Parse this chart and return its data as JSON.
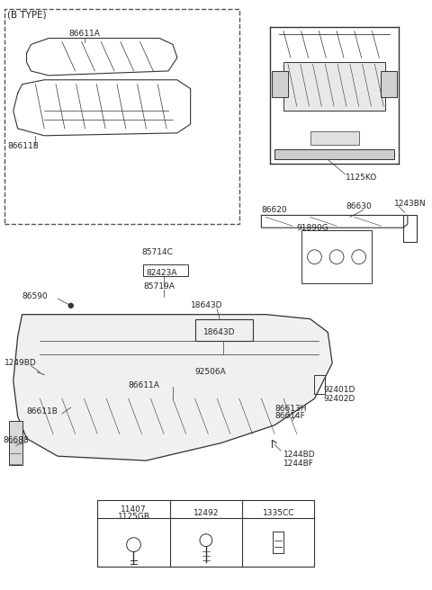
{
  "title": "",
  "bg_color": "#ffffff",
  "line_color": "#333333",
  "text_color": "#222222",
  "fig_width": 4.8,
  "fig_height": 6.56,
  "dpi": 100,
  "labels": {
    "b_type": "(B TYPE)",
    "86611A_top": "86611A",
    "86611B_top": "86611B",
    "1125KO": "1125KO",
    "86620": "86620",
    "86630": "86630",
    "1243BN": "1243BN",
    "85714C": "85714C",
    "82423A": "82423A",
    "85719A": "85719A",
    "91890G": "91890G",
    "86590": "86590",
    "18643D_top": "18643D",
    "18643D_box": "18643D",
    "92506A": "92506A",
    "1249BD": "1249BD",
    "86611A_main": "86611A",
    "86611B_main": "86611B",
    "86613H": "86613H",
    "86614F": "86614F",
    "92401D": "92401D",
    "92402D": "92402D",
    "86688": "86688",
    "1244BD": "1244BD",
    "1244BF": "1244BF",
    "11407": "11407",
    "1125GB": "1125GB",
    "12492": "12492",
    "1335CC": "1335CC"
  }
}
